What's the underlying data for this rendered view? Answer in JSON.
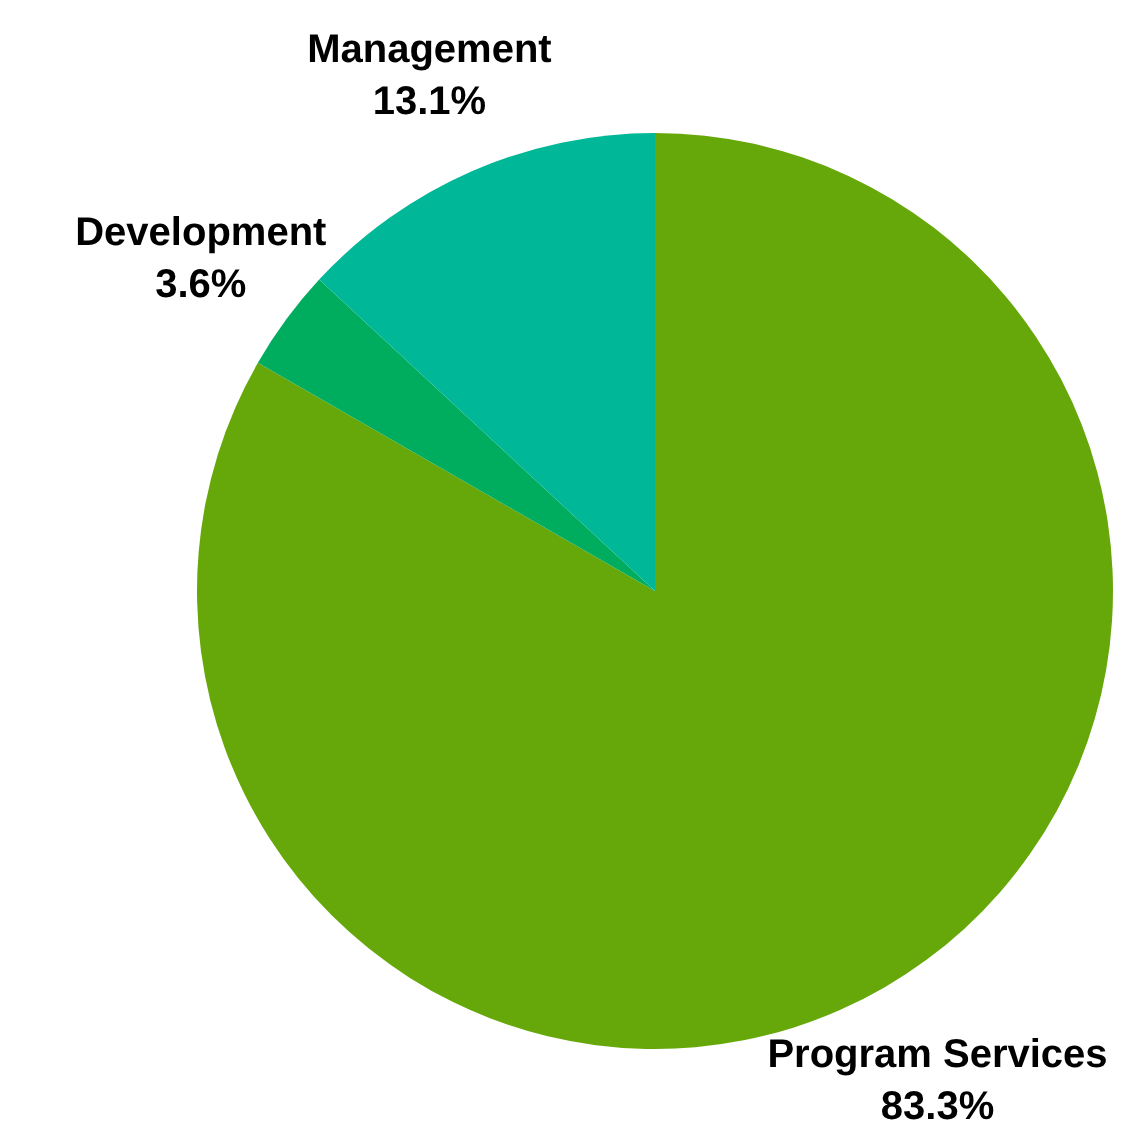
{
  "chart_data": {
    "type": "pie",
    "categories": [
      "Program Services",
      "Development",
      "Management"
    ],
    "values": [
      83.3,
      3.6,
      13.1
    ],
    "value_labels": [
      "83.3%",
      "3.6%",
      "13.1%"
    ],
    "colors": [
      "#66a80a",
      "#00ad5f",
      "#00b898"
    ],
    "legend": false
  }
}
